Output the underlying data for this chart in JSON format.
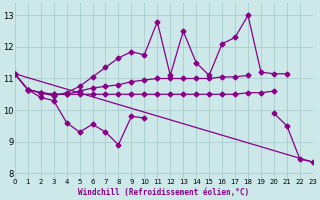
{
  "bg_color": "#cce8e8",
  "line_color": "#880088",
  "grid_color": "#aacccc",
  "ylim": [
    7.8,
    13.4
  ],
  "xlim": [
    0,
    23
  ],
  "xlabel": "Windchill (Refroidissement éolien,°C)",
  "yticks": [
    8,
    9,
    10,
    11,
    12,
    13
  ],
  "xticks": [
    0,
    1,
    2,
    3,
    4,
    5,
    6,
    7,
    8,
    9,
    10,
    11,
    12,
    13,
    14,
    15,
    16,
    17,
    18,
    19,
    20,
    21,
    22,
    23
  ],
  "line_upper": [
    11.15,
    10.65,
    10.55,
    10.45,
    10.55,
    10.75,
    11.05,
    11.35,
    11.65,
    11.85,
    11.75,
    12.8,
    11.1,
    12.5,
    11.5,
    11.1,
    12.1,
    12.3,
    13.0,
    11.2,
    11.15,
    11.15,
    null,
    null
  ],
  "line_mid_rise": [
    11.15,
    10.65,
    10.55,
    10.5,
    10.5,
    10.6,
    10.7,
    10.75,
    10.8,
    10.9,
    10.95,
    11.0,
    11.0,
    11.0,
    11.0,
    11.0,
    11.05,
    11.05,
    11.1,
    null,
    null,
    null,
    null,
    null
  ],
  "line_flat": [
    null,
    10.65,
    10.55,
    10.5,
    10.5,
    10.5,
    10.5,
    10.5,
    10.5,
    10.5,
    10.5,
    10.5,
    10.5,
    10.5,
    10.5,
    10.5,
    10.5,
    10.5,
    10.55,
    10.55,
    10.6,
    null,
    null,
    null
  ],
  "line_lower": [
    11.15,
    10.65,
    10.4,
    10.3,
    9.6,
    9.3,
    9.55,
    9.3,
    8.9,
    9.8,
    9.75,
    null,
    null,
    null,
    null,
    null,
    null,
    null,
    null,
    null,
    9.9,
    9.5,
    8.45,
    8.35
  ],
  "line_diag": [
    11.15,
    null,
    null,
    null,
    null,
    null,
    null,
    null,
    null,
    null,
    null,
    null,
    null,
    null,
    null,
    null,
    null,
    null,
    null,
    null,
    null,
    null,
    null,
    8.35
  ],
  "x": [
    0,
    1,
    2,
    3,
    4,
    5,
    6,
    7,
    8,
    9,
    10,
    11,
    12,
    13,
    14,
    15,
    16,
    17,
    18,
    19,
    20,
    21,
    22,
    23
  ]
}
